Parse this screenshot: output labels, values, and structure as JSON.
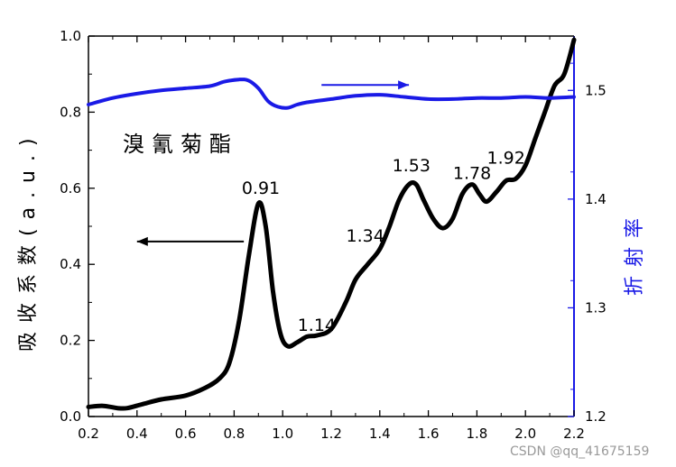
{
  "chart_data": {
    "type": "line",
    "compound_label": "溴氰菊酯",
    "ylabel_left": "吸收系数(a.u.)",
    "ylabel_right": "折射率",
    "xlim": [
      0.2,
      2.2
    ],
    "ylim_left": [
      0.0,
      1.0
    ],
    "ylim_right": [
      1.2,
      1.55
    ],
    "x_ticks": [
      "0.2",
      "0.4",
      "0.6",
      "0.8",
      "1.0",
      "1.2",
      "1.4",
      "1.6",
      "1.8",
      "2.0",
      "2.2"
    ],
    "y_left_ticks": [
      "0.0",
      "0.2",
      "0.4",
      "0.6",
      "0.8",
      "1.0"
    ],
    "y_right_ticks": [
      "1.2",
      "1.3",
      "1.4",
      "1.5"
    ],
    "colors": {
      "absorption": "#000000",
      "refractive": "#1a1ae6",
      "right_axis": "#1a1ae6"
    },
    "series": [
      {
        "axis": "left",
        "x": [
          0.2,
          0.26,
          0.32,
          0.36,
          0.42,
          0.5,
          0.6,
          0.68,
          0.74,
          0.78,
          0.82,
          0.86,
          0.9,
          0.93,
          0.96,
          0.99,
          1.02,
          1.06,
          1.1,
          1.14,
          1.2,
          1.26,
          1.3,
          1.35,
          1.4,
          1.44,
          1.48,
          1.52,
          1.55,
          1.58,
          1.62,
          1.66,
          1.7,
          1.74,
          1.78,
          1.81,
          1.84,
          1.88,
          1.92,
          1.96,
          2.0,
          2.04,
          2.08,
          2.12,
          2.16,
          2.2
        ],
        "y": [
          0.025,
          0.028,
          0.022,
          0.022,
          0.032,
          0.045,
          0.055,
          0.075,
          0.1,
          0.14,
          0.25,
          0.42,
          0.56,
          0.5,
          0.33,
          0.22,
          0.185,
          0.195,
          0.21,
          0.213,
          0.23,
          0.3,
          0.36,
          0.4,
          0.44,
          0.5,
          0.57,
          0.61,
          0.61,
          0.57,
          0.52,
          0.495,
          0.52,
          0.585,
          0.61,
          0.585,
          0.565,
          0.59,
          0.62,
          0.625,
          0.66,
          0.73,
          0.8,
          0.87,
          0.9,
          0.99
        ]
      },
      {
        "axis": "right",
        "x": [
          0.2,
          0.3,
          0.4,
          0.5,
          0.6,
          0.7,
          0.76,
          0.82,
          0.86,
          0.9,
          0.94,
          0.98,
          1.02,
          1.06,
          1.1,
          1.2,
          1.3,
          1.4,
          1.5,
          1.6,
          1.7,
          1.8,
          1.9,
          2.0,
          2.1,
          2.2
        ],
        "y": [
          1.487,
          1.493,
          1.497,
          1.5,
          1.502,
          1.504,
          1.508,
          1.51,
          1.509,
          1.502,
          1.49,
          1.485,
          1.484,
          1.487,
          1.489,
          1.492,
          1.495,
          1.496,
          1.494,
          1.492,
          1.492,
          1.493,
          1.493,
          1.494,
          1.493,
          1.494
        ]
      }
    ],
    "annotations": [
      {
        "text": "0.91",
        "x": 0.91,
        "y": 0.585
      },
      {
        "text": "1.14",
        "x": 1.14,
        "y": 0.225
      },
      {
        "text": "1.34",
        "x": 1.34,
        "y": 0.46
      },
      {
        "text": "1.53",
        "x": 1.53,
        "y": 0.645
      },
      {
        "text": "1.78",
        "x": 1.78,
        "y": 0.625
      },
      {
        "text": "1.92",
        "x": 1.92,
        "y": 0.665
      }
    ],
    "arrows": [
      {
        "axis": "left",
        "from": [
          0.84,
          0.46
        ],
        "to": [
          0.4,
          0.46
        ],
        "color": "#000000"
      },
      {
        "axis": "right",
        "from": [
          1.16,
          1.505
        ],
        "to": [
          1.52,
          1.505
        ],
        "color": "#1a1ae6"
      }
    ]
  },
  "watermark": "CSDN @qq_41675159"
}
